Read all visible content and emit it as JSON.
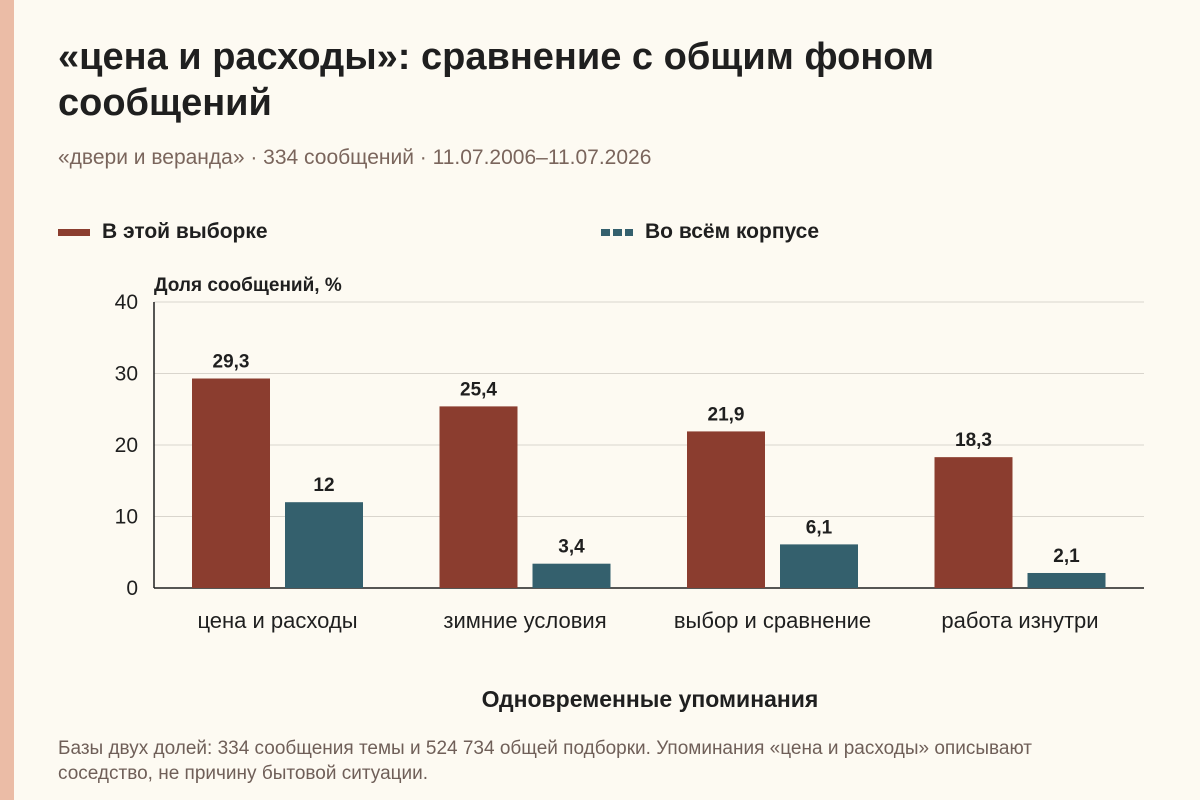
{
  "title": "«цена и расходы»: сравнение с общим фоном сообщений",
  "subtitle": "«двери и веранда» · 334 сообщений · 11.07.2006–11.07.2026",
  "legend": {
    "sample": "В этой выборке",
    "corpus": "Во всём корпусе"
  },
  "colors": {
    "sample": "#8b3d2f",
    "corpus": "#34606d",
    "accent_strip": "#ebbca6",
    "grid": "#d9d5cd"
  },
  "footnote": "Базы двух долей: 334 сообщения темы и 524 734 общей подборки. Упоминания «цена и расходы» описывают соседство, не причину бытовой ситуации.",
  "chart_data": {
    "type": "bar",
    "title": "«цена и расходы»: сравнение с общим фоном сообщений",
    "ylabel": "Доля сообщений, %",
    "xlabel": "Одновременные упоминания",
    "ylim": [
      0,
      40
    ],
    "yticks": [
      0,
      10,
      20,
      30,
      40
    ],
    "grid": true,
    "legend_position": "top",
    "categories": [
      "цена и расходы",
      "зимние условия",
      "выбор и сравнение",
      "работа изнутри"
    ],
    "series": [
      {
        "name": "В этой выборке",
        "values": [
          29.3,
          25.4,
          21.9,
          18.3
        ],
        "labels": [
          "29,3",
          "25,4",
          "21,9",
          "18,3"
        ]
      },
      {
        "name": "Во всём корпусе",
        "values": [
          12,
          3.4,
          6.1,
          2.1
        ],
        "labels": [
          "12",
          "3,4",
          "6,1",
          "2,1"
        ]
      }
    ]
  }
}
